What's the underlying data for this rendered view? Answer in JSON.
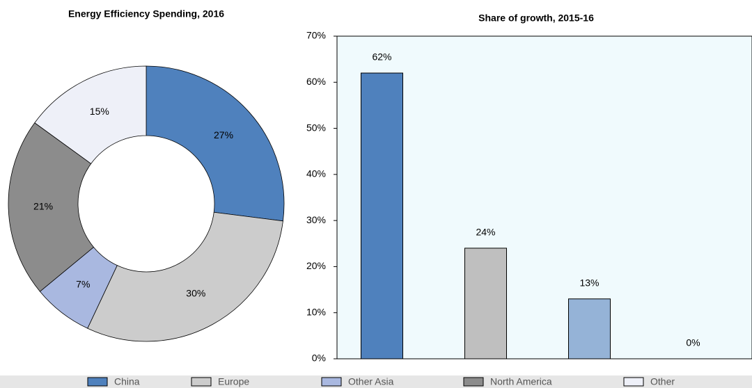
{
  "chart_data": [
    {
      "type": "pie",
      "title": "Energy Efficiency Spending, 2016",
      "categories": [
        "China",
        "Europe",
        "Other Asia",
        "North America",
        "Other"
      ],
      "values": [
        27,
        30,
        7,
        21,
        15
      ],
      "value_labels": [
        "27%",
        "30%",
        "7%",
        "21%",
        "15%"
      ],
      "colors": [
        "#4f81bd",
        "#cccccc",
        "#a9b8e0",
        "#8c8c8c",
        "#eef0f8"
      ],
      "donut": true,
      "legend": "bottom"
    },
    {
      "type": "bar",
      "title": "Share of growth, 2015-16",
      "categories": [
        null,
        null,
        null,
        null
      ],
      "values": [
        62,
        24,
        13,
        0
      ],
      "value_labels": [
        "62%",
        "24%",
        "13%",
        "0%"
      ],
      "colors": [
        "#4f81bd",
        "#bfbfbf",
        "#95b3d7",
        "#ffffff"
      ],
      "ylim": [
        0,
        70
      ],
      "yticks": [
        {
          "value": 0,
          "label": "0%"
        },
        {
          "value": 10,
          "label": "10%"
        },
        {
          "value": 20,
          "label": "20%"
        },
        {
          "value": 30,
          "label": "30%"
        },
        {
          "value": 40,
          "label": "40%"
        },
        {
          "value": 50,
          "label": "50%"
        },
        {
          "value": 60,
          "label": "60%"
        },
        {
          "value": 70,
          "label": "70%"
        }
      ]
    }
  ]
}
